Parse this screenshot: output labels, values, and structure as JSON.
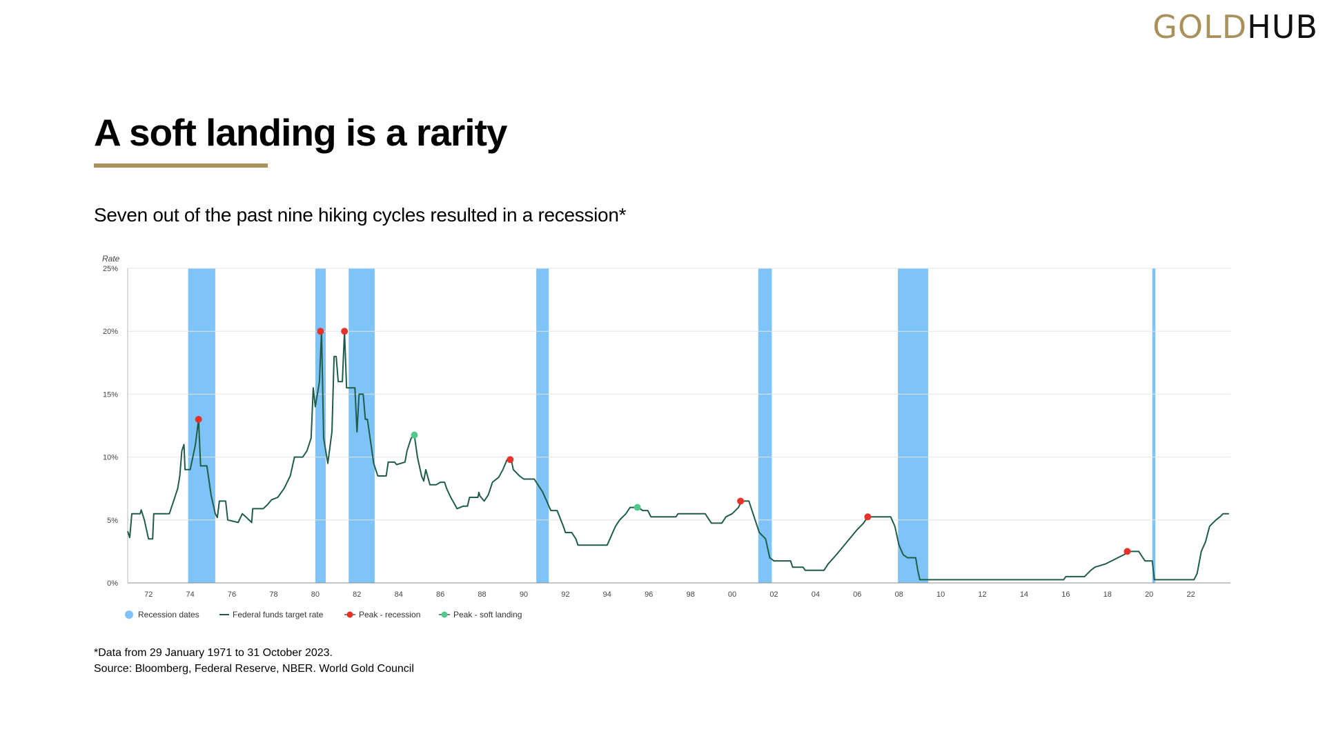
{
  "logo": {
    "gold": "GOLD",
    "hub": "HUB"
  },
  "title": "A soft landing is a rarity",
  "subtitle": "Seven out of the past nine hiking cycles resulted in a recession*",
  "footnotes": {
    "data_range": "*Data from 29 January 1971 to 31 October 2023.",
    "source": "Source: Bloomberg, Federal Reserve, NBER. World Gold Council"
  },
  "colors": {
    "accent": "#a8915a",
    "line": "#1e5c46",
    "recession": "#7ec4f8",
    "peak_recession": "#e63228",
    "peak_soft": "#52c98a"
  },
  "chart_data": {
    "type": "line",
    "title": "",
    "ylabel": "Rate",
    "xlabel": "",
    "xlim": [
      1971.0,
      2023.9
    ],
    "ylim": [
      0,
      25
    ],
    "y_ticks": [
      0,
      5,
      10,
      15,
      20,
      25
    ],
    "y_tick_labels": [
      "0%",
      "5%",
      "10%",
      "15%",
      "20%",
      "25%"
    ],
    "x_ticks": [
      1972,
      1974,
      1976,
      1978,
      1980,
      1982,
      1984,
      1986,
      1988,
      1990,
      1992,
      1994,
      1996,
      1998,
      2000,
      2002,
      2004,
      2006,
      2008,
      2010,
      2012,
      2014,
      2016,
      2018,
      2020,
      2022
    ],
    "x_tick_labels": [
      "72",
      "74",
      "76",
      "78",
      "80",
      "82",
      "84",
      "86",
      "88",
      "90",
      "92",
      "94",
      "96",
      "98",
      "00",
      "02",
      "04",
      "06",
      "08",
      "10",
      "12",
      "14",
      "16",
      "18",
      "20",
      "22"
    ],
    "grid": "horizontal",
    "legend": {
      "position": "bottom-left",
      "entries": [
        "Recession dates",
        "Federal funds target rate",
        "Peak - recession",
        "Peak - soft landing"
      ]
    },
    "recessions": [
      [
        1973.9,
        1975.2
      ],
      [
        1980.0,
        1980.5
      ],
      [
        1981.6,
        1982.85
      ],
      [
        1990.6,
        1991.2
      ],
      [
        2001.25,
        2001.9
      ],
      [
        2007.95,
        2009.4
      ],
      [
        2020.15,
        2020.3
      ]
    ],
    "series": [
      {
        "name": "Federal funds target rate",
        "points": [
          [
            1971.0,
            4.1
          ],
          [
            1971.1,
            3.6
          ],
          [
            1971.2,
            5.5
          ],
          [
            1971.6,
            5.5
          ],
          [
            1971.65,
            5.8
          ],
          [
            1971.8,
            5.0
          ],
          [
            1972.0,
            3.5
          ],
          [
            1972.2,
            3.5
          ],
          [
            1972.25,
            5.5
          ],
          [
            1973.0,
            5.5
          ],
          [
            1973.2,
            6.5
          ],
          [
            1973.4,
            7.5
          ],
          [
            1973.5,
            8.5
          ],
          [
            1973.6,
            10.5
          ],
          [
            1973.7,
            11.0
          ],
          [
            1973.75,
            9.0
          ],
          [
            1974.0,
            9.0
          ],
          [
            1974.25,
            11.0
          ],
          [
            1974.4,
            13.0
          ],
          [
            1974.5,
            9.3
          ],
          [
            1974.8,
            9.3
          ],
          [
            1975.0,
            7.0
          ],
          [
            1975.2,
            5.5
          ],
          [
            1975.3,
            5.2
          ],
          [
            1975.4,
            6.5
          ],
          [
            1975.7,
            6.5
          ],
          [
            1975.8,
            5.0
          ],
          [
            1976.3,
            4.8
          ],
          [
            1976.5,
            5.5
          ],
          [
            1976.7,
            5.2
          ],
          [
            1976.95,
            4.8
          ],
          [
            1977.0,
            5.9
          ],
          [
            1977.5,
            5.9
          ],
          [
            1977.7,
            6.2
          ],
          [
            1977.9,
            6.6
          ],
          [
            1978.2,
            6.8
          ],
          [
            1978.5,
            7.5
          ],
          [
            1978.8,
            8.5
          ],
          [
            1979.0,
            10.0
          ],
          [
            1979.4,
            10.0
          ],
          [
            1979.6,
            10.5
          ],
          [
            1979.8,
            11.5
          ],
          [
            1979.9,
            15.5
          ],
          [
            1980.0,
            14.0
          ],
          [
            1980.2,
            16.0
          ],
          [
            1980.3,
            20.0
          ],
          [
            1980.4,
            11.5
          ],
          [
            1980.6,
            9.5
          ],
          [
            1980.8,
            12.0
          ],
          [
            1980.9,
            18.0
          ],
          [
            1981.0,
            18.0
          ],
          [
            1981.1,
            16.0
          ],
          [
            1981.3,
            16.0
          ],
          [
            1981.4,
            20.0
          ],
          [
            1981.5,
            15.5
          ],
          [
            1981.9,
            15.5
          ],
          [
            1982.0,
            12.0
          ],
          [
            1982.1,
            15.0
          ],
          [
            1982.3,
            15.0
          ],
          [
            1982.4,
            13.0
          ],
          [
            1982.5,
            13.0
          ],
          [
            1982.8,
            9.5
          ],
          [
            1983.0,
            8.5
          ],
          [
            1983.4,
            8.5
          ],
          [
            1983.5,
            9.6
          ],
          [
            1983.8,
            9.6
          ],
          [
            1983.9,
            9.4
          ],
          [
            1984.3,
            9.6
          ],
          [
            1984.4,
            10.5
          ],
          [
            1984.6,
            11.5
          ],
          [
            1984.75,
            11.75
          ],
          [
            1984.9,
            10.0
          ],
          [
            1985.1,
            8.5
          ],
          [
            1985.2,
            8.1
          ],
          [
            1985.3,
            9.0
          ],
          [
            1985.5,
            7.8
          ],
          [
            1985.8,
            7.8
          ],
          [
            1986.0,
            8.0
          ],
          [
            1986.2,
            8.0
          ],
          [
            1986.3,
            7.5
          ],
          [
            1986.5,
            6.8
          ],
          [
            1986.7,
            6.2
          ],
          [
            1986.8,
            5.9
          ],
          [
            1987.1,
            6.1
          ],
          [
            1987.3,
            6.1
          ],
          [
            1987.4,
            6.8
          ],
          [
            1987.8,
            6.8
          ],
          [
            1987.85,
            7.2
          ],
          [
            1987.9,
            6.9
          ],
          [
            1988.1,
            6.5
          ],
          [
            1988.3,
            7.0
          ],
          [
            1988.5,
            8.0
          ],
          [
            1988.8,
            8.4
          ],
          [
            1989.0,
            9.0
          ],
          [
            1989.2,
            9.8
          ],
          [
            1989.4,
            9.8
          ],
          [
            1989.5,
            9.0
          ],
          [
            1989.8,
            8.5
          ],
          [
            1990.0,
            8.25
          ],
          [
            1990.5,
            8.25
          ],
          [
            1990.9,
            7.25
          ],
          [
            1991.1,
            6.5
          ],
          [
            1991.3,
            5.75
          ],
          [
            1991.6,
            5.75
          ],
          [
            1991.9,
            4.5
          ],
          [
            1992.0,
            4.0
          ],
          [
            1992.3,
            4.0
          ],
          [
            1992.5,
            3.5
          ],
          [
            1992.6,
            3.0
          ],
          [
            1994.0,
            3.0
          ],
          [
            1994.2,
            3.75
          ],
          [
            1994.4,
            4.5
          ],
          [
            1994.6,
            5.0
          ],
          [
            1994.9,
            5.5
          ],
          [
            1995.1,
            6.0
          ],
          [
            1995.5,
            6.0
          ],
          [
            1995.7,
            5.75
          ],
          [
            1995.95,
            5.75
          ],
          [
            1996.1,
            5.25
          ],
          [
            1997.3,
            5.25
          ],
          [
            1997.4,
            5.5
          ],
          [
            1998.7,
            5.5
          ],
          [
            1998.9,
            5.0
          ],
          [
            1999.0,
            4.75
          ],
          [
            1999.5,
            4.75
          ],
          [
            1999.7,
            5.25
          ],
          [
            2000.0,
            5.5
          ],
          [
            2000.3,
            6.0
          ],
          [
            2000.45,
            6.5
          ],
          [
            2000.8,
            6.5
          ],
          [
            2001.0,
            5.5
          ],
          [
            2001.3,
            4.0
          ],
          [
            2001.6,
            3.5
          ],
          [
            2001.8,
            2.0
          ],
          [
            2002.0,
            1.75
          ],
          [
            2002.8,
            1.75
          ],
          [
            2002.9,
            1.25
          ],
          [
            2003.4,
            1.25
          ],
          [
            2003.5,
            1.0
          ],
          [
            2004.4,
            1.0
          ],
          [
            2004.6,
            1.5
          ],
          [
            2005.0,
            2.25
          ],
          [
            2005.5,
            3.25
          ],
          [
            2006.0,
            4.25
          ],
          [
            2006.3,
            4.75
          ],
          [
            2006.5,
            5.25
          ],
          [
            2007.6,
            5.25
          ],
          [
            2007.8,
            4.5
          ],
          [
            2008.0,
            3.0
          ],
          [
            2008.2,
            2.25
          ],
          [
            2008.4,
            2.0
          ],
          [
            2008.8,
            2.0
          ],
          [
            2008.9,
            1.0
          ],
          [
            2009.0,
            0.25
          ],
          [
            2015.9,
            0.25
          ],
          [
            2016.0,
            0.5
          ],
          [
            2016.9,
            0.5
          ],
          [
            2017.2,
            1.0
          ],
          [
            2017.4,
            1.25
          ],
          [
            2017.9,
            1.5
          ],
          [
            2018.2,
            1.75
          ],
          [
            2018.5,
            2.0
          ],
          [
            2018.8,
            2.25
          ],
          [
            2019.0,
            2.5
          ],
          [
            2019.5,
            2.5
          ],
          [
            2019.6,
            2.25
          ],
          [
            2019.8,
            1.75
          ],
          [
            2020.15,
            1.75
          ],
          [
            2020.25,
            0.25
          ],
          [
            2022.15,
            0.25
          ],
          [
            2022.3,
            0.75
          ],
          [
            2022.5,
            2.5
          ],
          [
            2022.7,
            3.25
          ],
          [
            2022.9,
            4.5
          ],
          [
            2023.2,
            5.0
          ],
          [
            2023.4,
            5.25
          ],
          [
            2023.55,
            5.5
          ],
          [
            2023.83,
            5.5
          ]
        ]
      },
      {
        "name": "Peak - recession",
        "points": [
          [
            1974.4,
            13.0
          ],
          [
            1980.25,
            20.0
          ],
          [
            1981.4,
            20.0
          ],
          [
            1989.35,
            9.8
          ],
          [
            2000.4,
            6.5
          ],
          [
            2006.5,
            5.25
          ],
          [
            2018.95,
            2.5
          ]
        ]
      },
      {
        "name": "Peak - soft landing",
        "points": [
          [
            1984.75,
            11.75
          ],
          [
            1995.45,
            6.0
          ]
        ]
      }
    ]
  }
}
